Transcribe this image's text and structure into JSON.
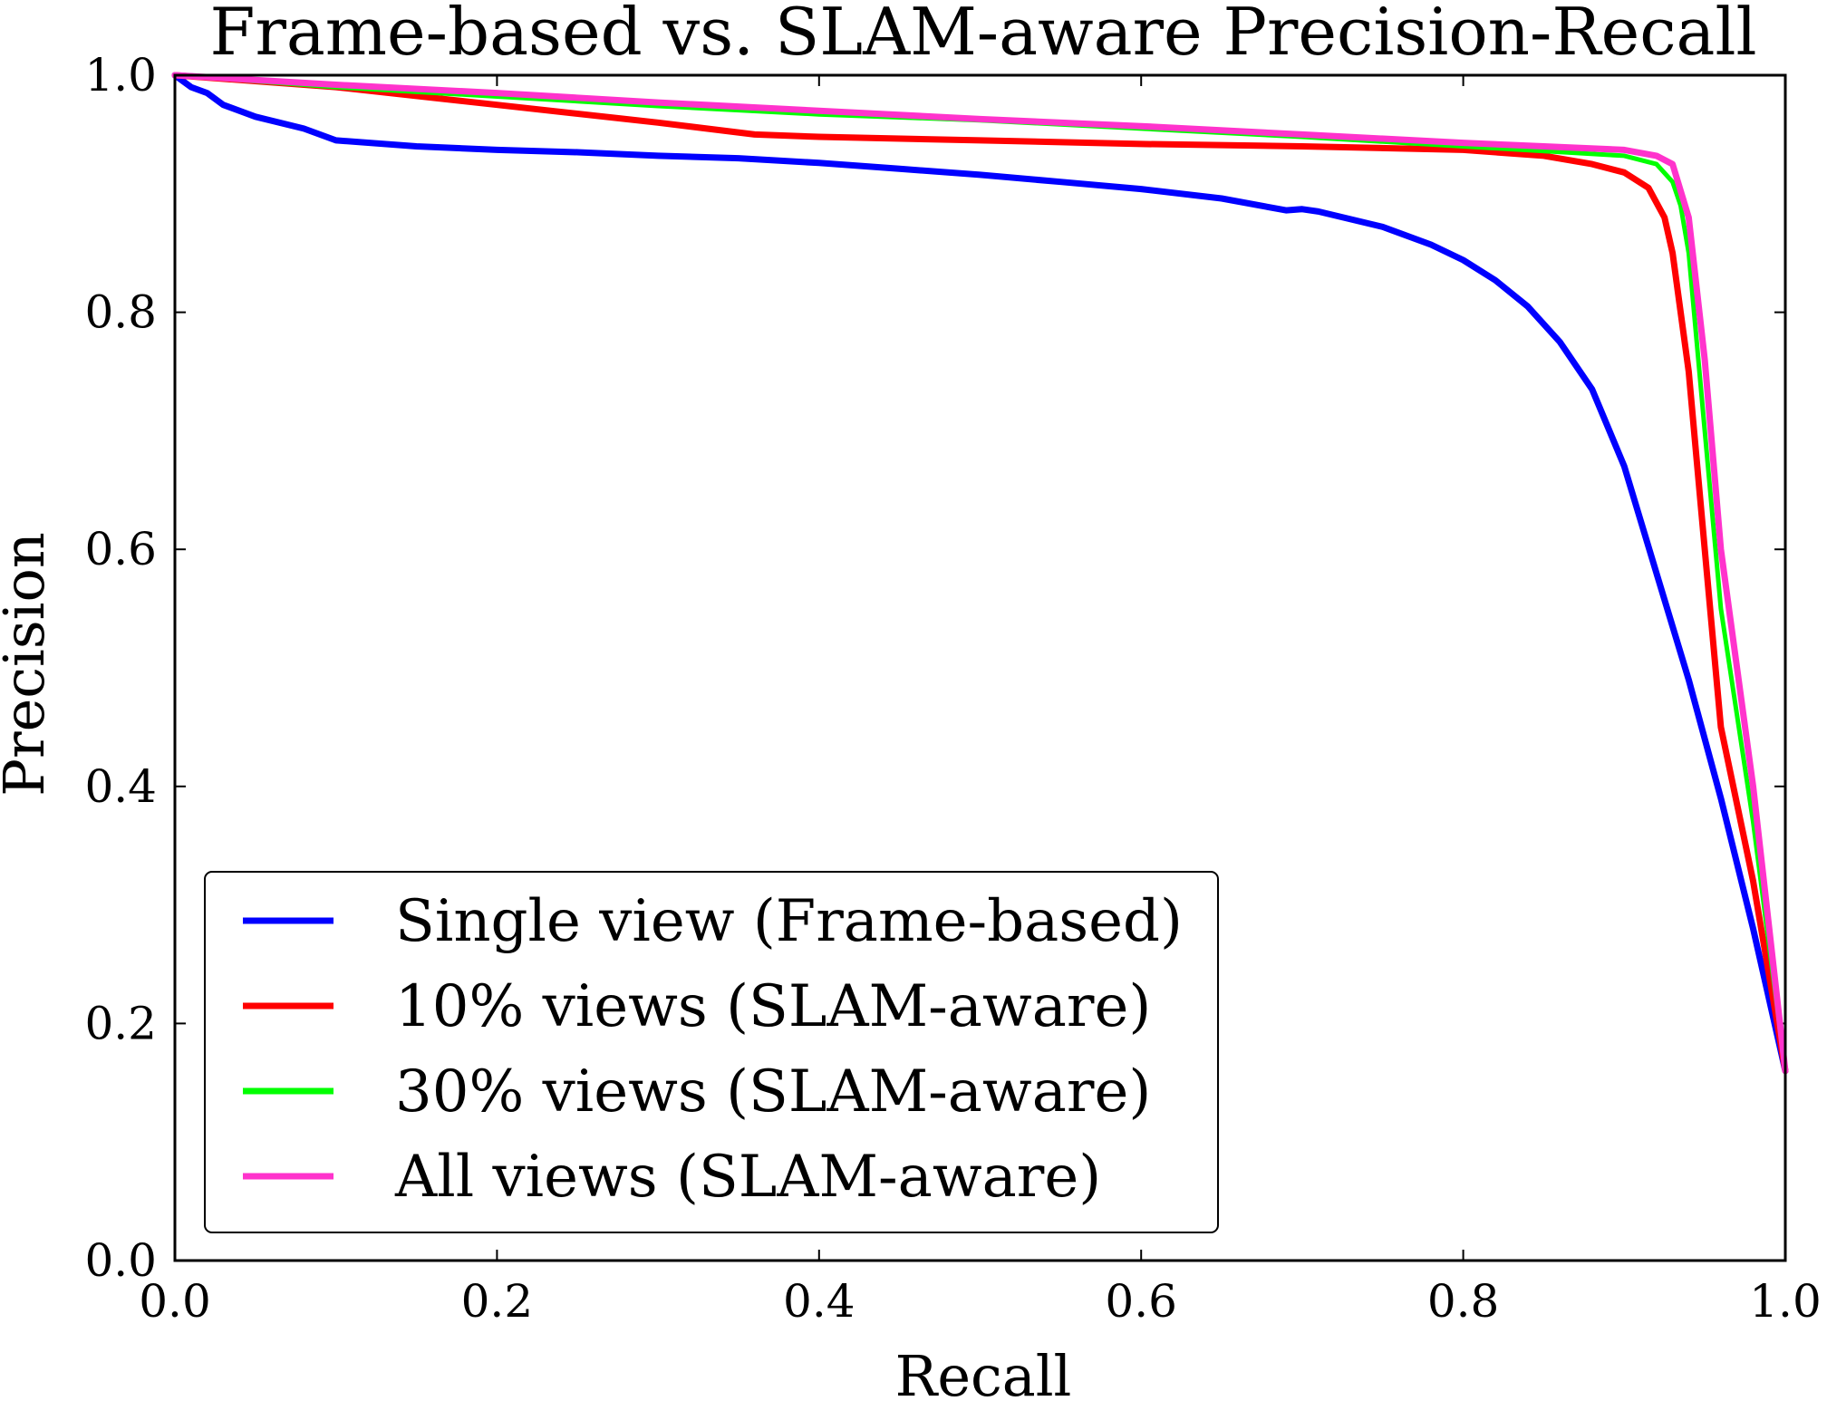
{
  "chart_data": {
    "type": "line",
    "title": "Frame-based vs. SLAM-aware Precision-Recall",
    "xlabel": "Recall",
    "ylabel": "Precision",
    "xlim": [
      0.0,
      1.0
    ],
    "ylim": [
      0.0,
      1.0
    ],
    "xticks": [
      "0.0",
      "0.2",
      "0.4",
      "0.6",
      "0.8",
      "1.0"
    ],
    "yticks": [
      "0.0",
      "0.2",
      "0.4",
      "0.6",
      "0.8",
      "1.0"
    ],
    "grid": false,
    "legend": "lower-left",
    "series": [
      {
        "name": "Single view (Frame-based)",
        "color": "#0000ff",
        "x": [
          0.0,
          0.01,
          0.02,
          0.03,
          0.05,
          0.08,
          0.1,
          0.15,
          0.2,
          0.25,
          0.3,
          0.35,
          0.4,
          0.45,
          0.5,
          0.55,
          0.6,
          0.65,
          0.69,
          0.7,
          0.71,
          0.75,
          0.78,
          0.8,
          0.82,
          0.84,
          0.86,
          0.88,
          0.9,
          0.92,
          0.94,
          0.96,
          0.98,
          1.0
        ],
        "y": [
          1.0,
          0.99,
          0.985,
          0.975,
          0.965,
          0.955,
          0.945,
          0.94,
          0.937,
          0.935,
          0.932,
          0.93,
          0.926,
          0.921,
          0.916,
          0.91,
          0.904,
          0.896,
          0.886,
          0.887,
          0.885,
          0.872,
          0.857,
          0.844,
          0.827,
          0.805,
          0.775,
          0.735,
          0.67,
          0.58,
          0.49,
          0.39,
          0.28,
          0.16
        ]
      },
      {
        "name": "10% views (SLAM-aware)",
        "color": "#ff0000",
        "x": [
          0.0,
          0.1,
          0.2,
          0.3,
          0.36,
          0.4,
          0.5,
          0.6,
          0.7,
          0.8,
          0.85,
          0.88,
          0.9,
          0.915,
          0.925,
          0.93,
          0.94,
          0.95,
          0.96,
          0.98,
          1.0
        ],
        "y": [
          1.0,
          0.99,
          0.975,
          0.96,
          0.95,
          0.948,
          0.945,
          0.942,
          0.94,
          0.937,
          0.932,
          0.925,
          0.918,
          0.905,
          0.88,
          0.85,
          0.75,
          0.6,
          0.45,
          0.32,
          0.16
        ]
      },
      {
        "name": "30% views (SLAM-aware)",
        "color": "#00ff00",
        "x": [
          0.0,
          0.1,
          0.2,
          0.3,
          0.4,
          0.5,
          0.6,
          0.7,
          0.8,
          0.9,
          0.92,
          0.93,
          0.935,
          0.94,
          0.95,
          0.96,
          0.98,
          1.0
        ],
        "y": [
          1.0,
          0.99,
          0.982,
          0.974,
          0.967,
          0.962,
          0.955,
          0.948,
          0.94,
          0.932,
          0.925,
          0.91,
          0.89,
          0.85,
          0.7,
          0.55,
          0.37,
          0.16
        ]
      },
      {
        "name": "All views (SLAM-aware)",
        "color": "#ff33cc",
        "x": [
          0.0,
          0.1,
          0.2,
          0.3,
          0.4,
          0.5,
          0.6,
          0.7,
          0.8,
          0.85,
          0.9,
          0.92,
          0.93,
          0.94,
          0.95,
          0.96,
          0.98,
          1.0
        ],
        "y": [
          1.0,
          0.992,
          0.985,
          0.977,
          0.97,
          0.963,
          0.957,
          0.95,
          0.943,
          0.94,
          0.937,
          0.932,
          0.925,
          0.88,
          0.76,
          0.6,
          0.4,
          0.16
        ]
      }
    ]
  }
}
